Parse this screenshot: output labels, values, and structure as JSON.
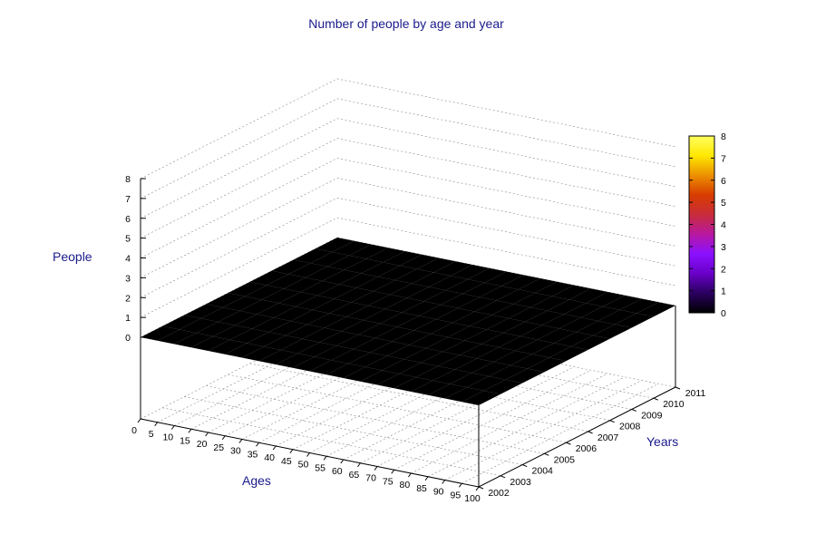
{
  "chart_data": {
    "type": "surface3d",
    "title": "Number of people by age and year",
    "xlabel": "Ages",
    "ylabel": "Years",
    "zlabel": "People",
    "x_ticks": [
      "0",
      "5",
      "10",
      "15",
      "20",
      "25",
      "30",
      "35",
      "40",
      "45",
      "50",
      "55",
      "60",
      "65",
      "70",
      "75",
      "80",
      "85",
      "90",
      "95",
      "100"
    ],
    "y_ticks": [
      "2002",
      "2003",
      "2004",
      "2005",
      "2006",
      "2007",
      "2008",
      "2009",
      "2010",
      "2011"
    ],
    "z_ticks": [
      "0",
      "1",
      "2",
      "3",
      "4",
      "5",
      "6",
      "7",
      "8"
    ],
    "colorbar_ticks": [
      "0",
      "1",
      "2",
      "3",
      "4",
      "5",
      "6",
      "7",
      "8"
    ],
    "xlim": [
      0,
      100
    ],
    "ylim": [
      2002,
      2011
    ],
    "zlim": [
      0,
      8
    ],
    "colormap": [
      "#000000",
      "#2a0060",
      "#6a00c8",
      "#8a10ff",
      "#b818a0",
      "#c82c3a",
      "#d83c00",
      "#ec9000",
      "#ffe800",
      "#ffff60"
    ],
    "grid": true,
    "ages": [
      0,
      5,
      10,
      15,
      20,
      25,
      30,
      35,
      40,
      45,
      50,
      55,
      60,
      65,
      70,
      75,
      80,
      85,
      90,
      95,
      100
    ],
    "years": [
      2002,
      2003,
      2004,
      2005,
      2006,
      2007,
      2008,
      2009,
      2010,
      2011
    ],
    "values": [
      [
        0,
        0,
        0,
        0,
        0,
        0,
        0,
        0,
        0,
        0,
        0,
        0,
        0,
        0,
        0,
        0,
        0,
        0,
        0,
        0,
        0
      ],
      [
        0,
        0,
        0,
        0,
        0,
        0,
        0,
        0,
        0,
        0,
        0,
        0,
        0,
        0,
        0,
        0,
        0,
        0,
        0,
        0,
        0
      ],
      [
        0,
        0,
        0,
        0,
        0,
        0,
        0,
        0,
        0,
        0,
        0,
        0,
        0,
        0,
        0,
        0,
        0,
        0,
        0,
        0,
        0
      ],
      [
        0,
        0,
        0,
        0,
        0,
        0,
        0,
        0,
        0,
        0,
        0,
        0,
        0,
        0,
        0,
        0,
        0,
        0,
        0,
        0,
        0
      ],
      [
        0,
        0,
        0,
        0,
        0,
        0,
        0,
        0,
        0,
        0,
        0,
        0,
        0,
        0,
        0,
        0,
        0,
        0,
        0,
        0,
        0
      ],
      [
        0,
        0,
        0,
        0,
        0,
        0,
        0,
        0,
        0,
        0,
        0,
        0,
        0,
        0,
        0,
        0,
        0,
        0,
        0,
        0,
        0
      ],
      [
        0,
        0,
        0,
        0,
        0,
        0,
        0,
        0,
        0,
        0,
        0,
        0,
        0,
        0,
        0,
        0,
        0,
        0,
        0,
        0,
        0
      ],
      [
        0,
        0,
        0,
        0,
        0,
        0,
        0,
        0,
        0,
        0,
        0,
        0,
        0,
        0,
        0,
        0,
        0,
        0,
        0,
        0,
        0
      ],
      [
        0,
        0,
        0,
        0,
        0,
        0,
        0,
        0,
        0,
        0,
        0,
        0,
        0,
        0,
        0,
        0,
        0,
        0,
        0,
        0,
        0
      ],
      [
        0,
        0,
        0,
        0,
        0,
        0,
        0,
        0,
        0,
        0,
        0,
        0,
        0,
        0,
        0,
        0,
        0,
        0,
        0,
        0,
        0
      ]
    ]
  }
}
